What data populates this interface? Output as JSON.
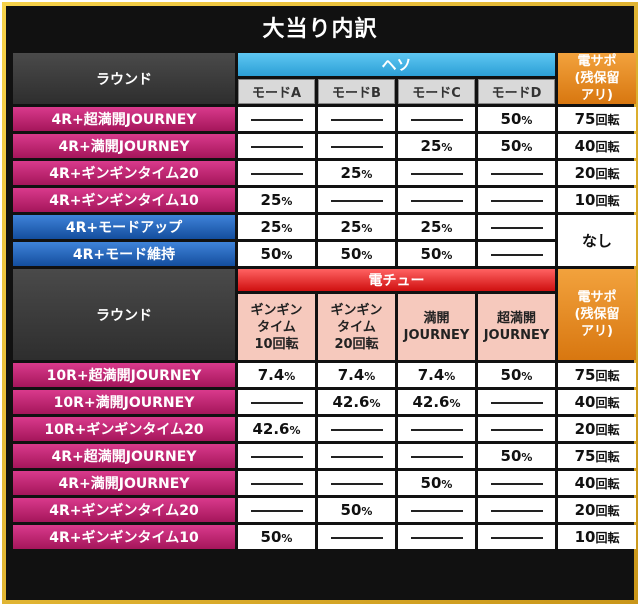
{
  "title": "大当り内訳",
  "dash": "———",
  "top": {
    "round_header": "ラウンド",
    "heso_label": "ヘソ",
    "modes": [
      "モードA",
      "モードB",
      "モードC",
      "モードD"
    ],
    "densapo_header": [
      "電サポ",
      "(残保留",
      "アリ)"
    ],
    "rows": [
      {
        "label": "4R+超満開JOURNEY",
        "style": "pink",
        "cells": [
          null,
          null,
          null,
          "50"
        ],
        "extra": "75"
      },
      {
        "label": "4R+満開JOURNEY",
        "style": "pink",
        "cells": [
          null,
          null,
          "25",
          "50"
        ],
        "extra": "40"
      },
      {
        "label": "4R+ギンギンタイム20",
        "style": "pink",
        "cells": [
          null,
          "25",
          null,
          null
        ],
        "extra": "20"
      },
      {
        "label": "4R+ギンギンタイム10",
        "style": "pink",
        "cells": [
          "25",
          null,
          null,
          null
        ],
        "extra": "10"
      },
      {
        "label": "4R+モードアップ",
        "style": "blue",
        "cells": [
          "25",
          "25",
          "25",
          null
        ]
      },
      {
        "label": "4R+モード維持",
        "style": "blue",
        "cells": [
          "50",
          "50",
          "50",
          null
        ]
      }
    ],
    "nashi": "なし"
  },
  "bottom": {
    "round_header": "ラウンド",
    "den_label": "電チュー",
    "cols": [
      [
        "ギンギン",
        "タイム",
        "10回転"
      ],
      [
        "ギンギン",
        "タイム",
        "20回転"
      ],
      [
        "満開",
        "JOURNEY"
      ],
      [
        "超満開",
        "JOURNEY"
      ]
    ],
    "densapo_header": [
      "電サポ",
      "(残保留",
      "アリ)"
    ],
    "rows": [
      {
        "label": "10R+超満開JOURNEY",
        "cells": [
          "7.4",
          "7.4",
          "7.4",
          "50"
        ],
        "extra": "75"
      },
      {
        "label": "10R+満開JOURNEY",
        "cells": [
          null,
          "42.6",
          "42.6",
          null
        ],
        "extra": "40"
      },
      {
        "label": "10R+ギンギンタイム20",
        "cells": [
          "42.6",
          null,
          null,
          null
        ],
        "extra": "20"
      },
      {
        "label": "4R+超満開JOURNEY",
        "cells": [
          null,
          null,
          null,
          "50"
        ],
        "extra": "75"
      },
      {
        "label": "4R+満開JOURNEY",
        "cells": [
          null,
          null,
          "50",
          null
        ],
        "extra": "40"
      },
      {
        "label": "4R+ギンギンタイム20",
        "cells": [
          null,
          "50",
          null,
          null
        ],
        "extra": "20"
      },
      {
        "label": "4R+ギンギンタイム10",
        "cells": [
          "50",
          null,
          null,
          null
        ],
        "extra": "10"
      }
    ]
  },
  "units": {
    "percent": "%",
    "kaiten": "回転"
  },
  "colors": {
    "pink": "#c2206f",
    "blue": "#1f63b8",
    "heso": "#36aee3",
    "densapo": "#e88a22",
    "denchu": "#e02828",
    "frame": "#e3b22e"
  }
}
